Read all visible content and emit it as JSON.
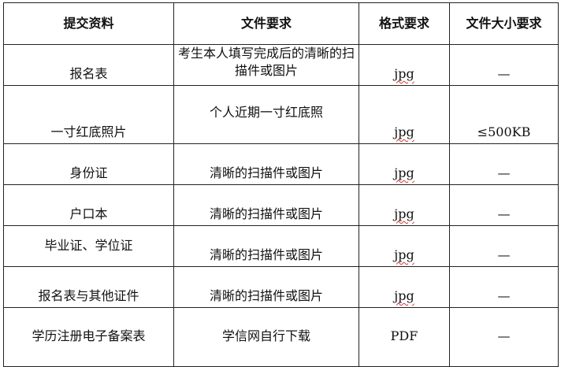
{
  "headers": [
    "提交资料",
    "文件要求",
    "格式要求",
    "文件大小要求"
  ],
  "rows": [
    {
      "material": "报名表",
      "requirement": "考生本人填写完成后的清晰的扫描件或图片",
      "format": "jpg",
      "size": "—"
    },
    {
      "material": "一寸红底照片",
      "requirement": "个人近期一寸红底照",
      "format": "jpg",
      "size": "≤500KB"
    },
    {
      "material": "身份证",
      "requirement": "清晰的扫描件或图片",
      "format": "jpg",
      "size": "—"
    },
    {
      "material": "户口本",
      "requirement": "清晰的扫描件或图片",
      "format": "jpg",
      "size": "—"
    },
    {
      "material": "毕业证、学位证",
      "requirement": "清晰的扫描件或图片",
      "format": "jpg",
      "size": "—"
    },
    {
      "material": "报名表与其他证件",
      "requirement": "清晰的扫描件或图片",
      "format": "jpg",
      "size": "—"
    },
    {
      "material": "学历注册电子备案表",
      "requirement": "学信网自行下载",
      "format": "PDF",
      "size": "—"
    }
  ]
}
